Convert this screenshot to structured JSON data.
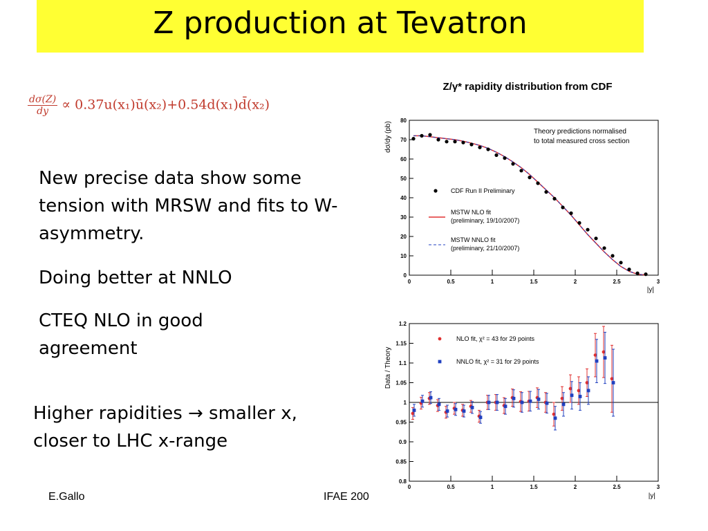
{
  "slide": {
    "title": "Z production at Tevatron",
    "formula": {
      "lhs_num": "dσ(Z)",
      "lhs_den": "dy",
      "rhs": "∝ 0.37u(x₁)ū(x₂)+0.54d(x₁)d̄(x₂)"
    },
    "bullets": [
      "New precise data show some tension with MRSW and fits to W-asymmetry.",
      "Doing better at NNLO",
      "CTEQ NLO in good agreement"
    ],
    "bullet2": "Higher rapidities → smaller x, closer to LHC x-range",
    "footer_left": "E.Gallo",
    "footer_center": "IFAE 200"
  },
  "chart_data": [
    {
      "type": "scatter",
      "title": "Z/γ* rapidity distribution from CDF",
      "xlabel": "|y|",
      "ylabel": "dσ/dy (pb)",
      "xlim": [
        0,
        3
      ],
      "ylim": [
        0,
        80
      ],
      "xticks": [
        "0",
        "0.5",
        "1",
        "1.5",
        "2",
        "2.5",
        "3"
      ],
      "yticks": [
        "0",
        "10",
        "20",
        "30",
        "40",
        "50",
        "60",
        "70",
        "80"
      ],
      "annotation": "Theory predictions normalised to total measured cross section",
      "legend": [
        {
          "label": "CDF Run II Preliminary",
          "marker": "dot",
          "color": "#000000"
        },
        {
          "label": "MSTW NLO fit",
          "sub": "(preliminary, 19/10/2007)",
          "style": "solid",
          "color": "#e03030"
        },
        {
          "label": "MSTW NNLO fit",
          "sub": "(preliminary, 21/10/2007)",
          "style": "dashed",
          "color": "#2040c0"
        }
      ],
      "x": [
        0.05,
        0.15,
        0.25,
        0.35,
        0.45,
        0.55,
        0.65,
        0.75,
        0.85,
        0.95,
        1.05,
        1.15,
        1.25,
        1.35,
        1.45,
        1.55,
        1.65,
        1.75,
        1.85,
        1.95,
        2.05,
        2.15,
        2.25,
        2.35,
        2.45,
        2.55,
        2.65,
        2.75,
        2.85
      ],
      "series": [
        {
          "name": "CDF Run II Preliminary",
          "values": [
            70.5,
            72,
            72.5,
            70,
            69,
            69,
            68.5,
            67.5,
            66,
            65,
            62,
            60.5,
            57.5,
            54,
            50.5,
            47.5,
            43,
            39.5,
            35,
            32,
            27,
            23.5,
            19,
            14,
            10,
            6.5,
            3,
            1,
            0.5
          ]
        },
        {
          "name": "MSTW NLO fit",
          "values": [
            72,
            72,
            71.5,
            71,
            70.5,
            70,
            69.2,
            68.2,
            67,
            65.5,
            63.5,
            61.2,
            58.5,
            55.5,
            52,
            48,
            44,
            40,
            35.5,
            31,
            26,
            21,
            16.5,
            12,
            8,
            4.5,
            2,
            0.5,
            0.1
          ]
        }
      ]
    },
    {
      "type": "scatter",
      "xlabel": "|y|",
      "ylabel": "Data / Theory",
      "xlim": [
        0,
        3
      ],
      "ylim": [
        0.8,
        1.2
      ],
      "xticks": [
        "0",
        "0.5",
        "1",
        "1.5",
        "2",
        "2.5",
        "3"
      ],
      "yticks": [
        "0.8",
        "0.85",
        "0.9",
        "0.95",
        "1",
        "1.05",
        "1.1",
        "1.15",
        "1.2"
      ],
      "legend": [
        {
          "label": "NLO fit, χ² = 43 for 29 points",
          "color": "#e03030",
          "marker": "dot"
        },
        {
          "label": "NNLO fit, χ² = 31 for 29 points",
          "color": "#2040c0",
          "marker": "square"
        }
      ],
      "x": [
        0.05,
        0.15,
        0.25,
        0.35,
        0.45,
        0.55,
        0.65,
        0.75,
        0.85,
        0.95,
        1.05,
        1.15,
        1.25,
        1.35,
        1.45,
        1.55,
        1.65,
        1.75,
        1.85,
        1.95,
        2.05,
        2.15,
        2.25,
        2.35,
        2.45
      ],
      "series": [
        {
          "name": "NLO fit",
          "values": [
            0.972,
            0.998,
            1.01,
            0.992,
            0.975,
            0.985,
            0.98,
            0.99,
            0.965,
            1.0,
            1.0,
            0.992,
            1.012,
            1.002,
            1.003,
            1.012,
            1.0,
            0.97,
            1.01,
            1.035,
            1.03,
            1.05,
            1.12,
            1.128,
            1.06
          ],
          "err": [
            0.015,
            0.015,
            0.015,
            0.015,
            0.015,
            0.015,
            0.015,
            0.015,
            0.015,
            0.018,
            0.02,
            0.02,
            0.022,
            0.025,
            0.025,
            0.025,
            0.025,
            0.03,
            0.03,
            0.035,
            0.035,
            0.035,
            0.055,
            0.065,
            0.085
          ]
        },
        {
          "name": "NNLO fit",
          "values": [
            0.98,
            1.003,
            1.012,
            0.995,
            0.978,
            0.982,
            0.978,
            0.987,
            0.962,
            1.0,
            1.0,
            0.99,
            1.01,
            1.0,
            1.003,
            1.008,
            0.998,
            0.96,
            0.995,
            1.018,
            1.015,
            1.03,
            1.105,
            1.113,
            1.05
          ],
          "err": [
            0.015,
            0.015,
            0.015,
            0.015,
            0.015,
            0.015,
            0.015,
            0.015,
            0.015,
            0.018,
            0.02,
            0.02,
            0.022,
            0.025,
            0.025,
            0.025,
            0.025,
            0.03,
            0.03,
            0.035,
            0.035,
            0.035,
            0.055,
            0.065,
            0.085
          ]
        }
      ]
    }
  ]
}
